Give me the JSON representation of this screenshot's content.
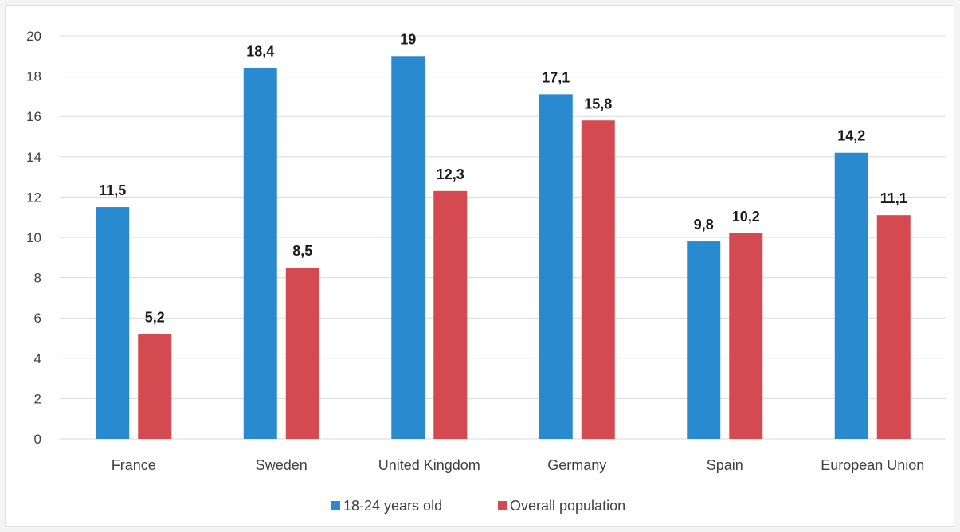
{
  "chart_data": {
    "type": "bar",
    "categories": [
      "France",
      "Sweden",
      "United Kingdom",
      "Germany",
      "Spain",
      "European Union"
    ],
    "series": [
      {
        "name": "18-24 years old",
        "color": "#2a8ad0",
        "values": [
          11.5,
          18.4,
          19,
          17.1,
          9.8,
          14.2
        ],
        "labels": [
          "11,5",
          "18,4",
          "19",
          "17,1",
          "9,8",
          "14,2"
        ]
      },
      {
        "name": "Overall population",
        "color": "#d44a50",
        "values": [
          5.2,
          8.5,
          12.3,
          15.8,
          10.2,
          11.1
        ],
        "labels": [
          "5,2",
          "8,5",
          "12,3",
          "15,8",
          "10,2",
          "11,1"
        ]
      }
    ],
    "y_ticks": [
      "0",
      "2",
      "4",
      "6",
      "8",
      "10",
      "12",
      "14",
      "16",
      "18",
      "20"
    ],
    "ylim": [
      0,
      20
    ],
    "grid": true,
    "legend_position": "bottom-center",
    "gridline_color": "#d9d9d9"
  }
}
